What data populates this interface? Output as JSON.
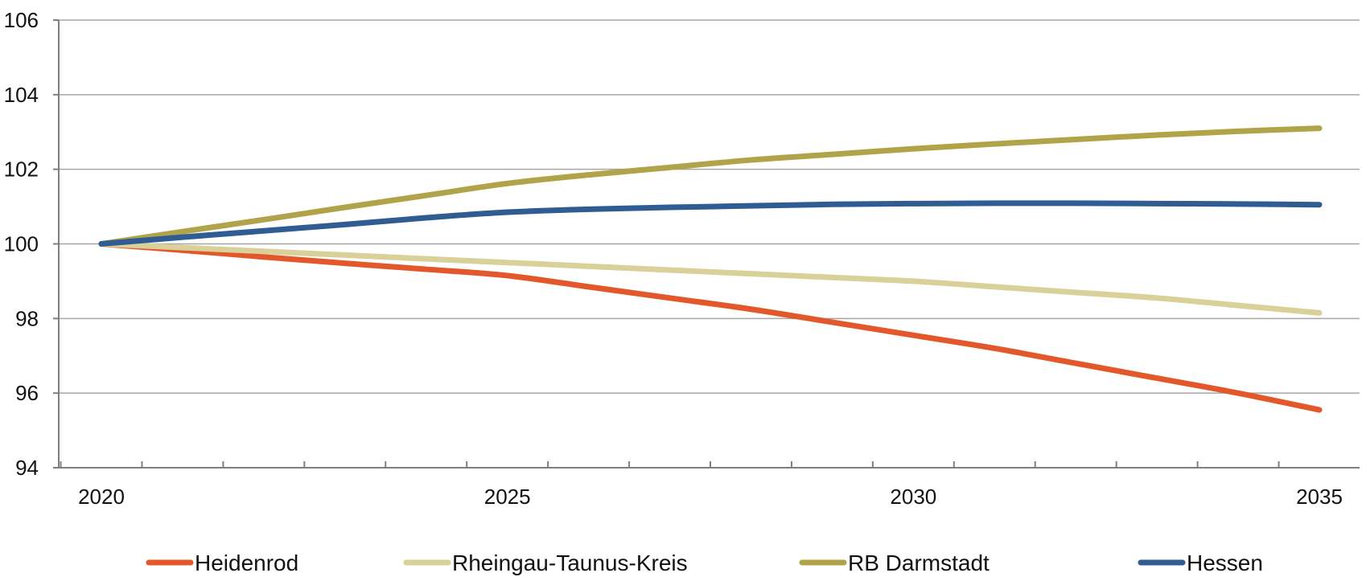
{
  "chart_data": {
    "type": "line",
    "x": [
      2020,
      2021,
      2022,
      2023,
      2024,
      2025,
      2026,
      2027,
      2028,
      2029,
      2030,
      2031,
      2032,
      2033,
      2034,
      2035
    ],
    "x_tick_labels": [
      "2020",
      "2025",
      "2030",
      "2035"
    ],
    "y_tick_labels": [
      "94",
      "96",
      "98",
      "100",
      "102",
      "104",
      "106"
    ],
    "ylim": [
      94,
      106
    ],
    "grid": "horizontal",
    "legend_position": "bottom",
    "series": [
      {
        "name": "Heidenrod",
        "color": "#E2582B",
        "values": [
          100.0,
          99.83,
          99.65,
          99.48,
          99.32,
          99.15,
          98.85,
          98.55,
          98.25,
          97.9,
          97.55,
          97.2,
          96.8,
          96.4,
          96.0,
          95.55
        ]
      },
      {
        "name": "Rheingau-Taunus-Kreis",
        "color": "#D9D09A",
        "values": [
          100.0,
          99.9,
          99.8,
          99.7,
          99.6,
          99.5,
          99.4,
          99.3,
          99.2,
          99.1,
          99.0,
          98.85,
          98.7,
          98.55,
          98.35,
          98.15
        ]
      },
      {
        "name": "RB Darmstadt",
        "color": "#B1A34A",
        "values": [
          100.0,
          100.33,
          100.65,
          100.98,
          101.3,
          101.62,
          101.85,
          102.05,
          102.25,
          102.4,
          102.55,
          102.68,
          102.8,
          102.92,
          103.02,
          103.1
        ]
      },
      {
        "name": "Hessen",
        "color": "#2F5C93",
        "values": [
          100.0,
          100.18,
          100.35,
          100.52,
          100.7,
          100.85,
          100.93,
          100.98,
          101.02,
          101.06,
          101.08,
          101.09,
          101.09,
          101.08,
          101.07,
          101.05
        ]
      }
    ]
  }
}
